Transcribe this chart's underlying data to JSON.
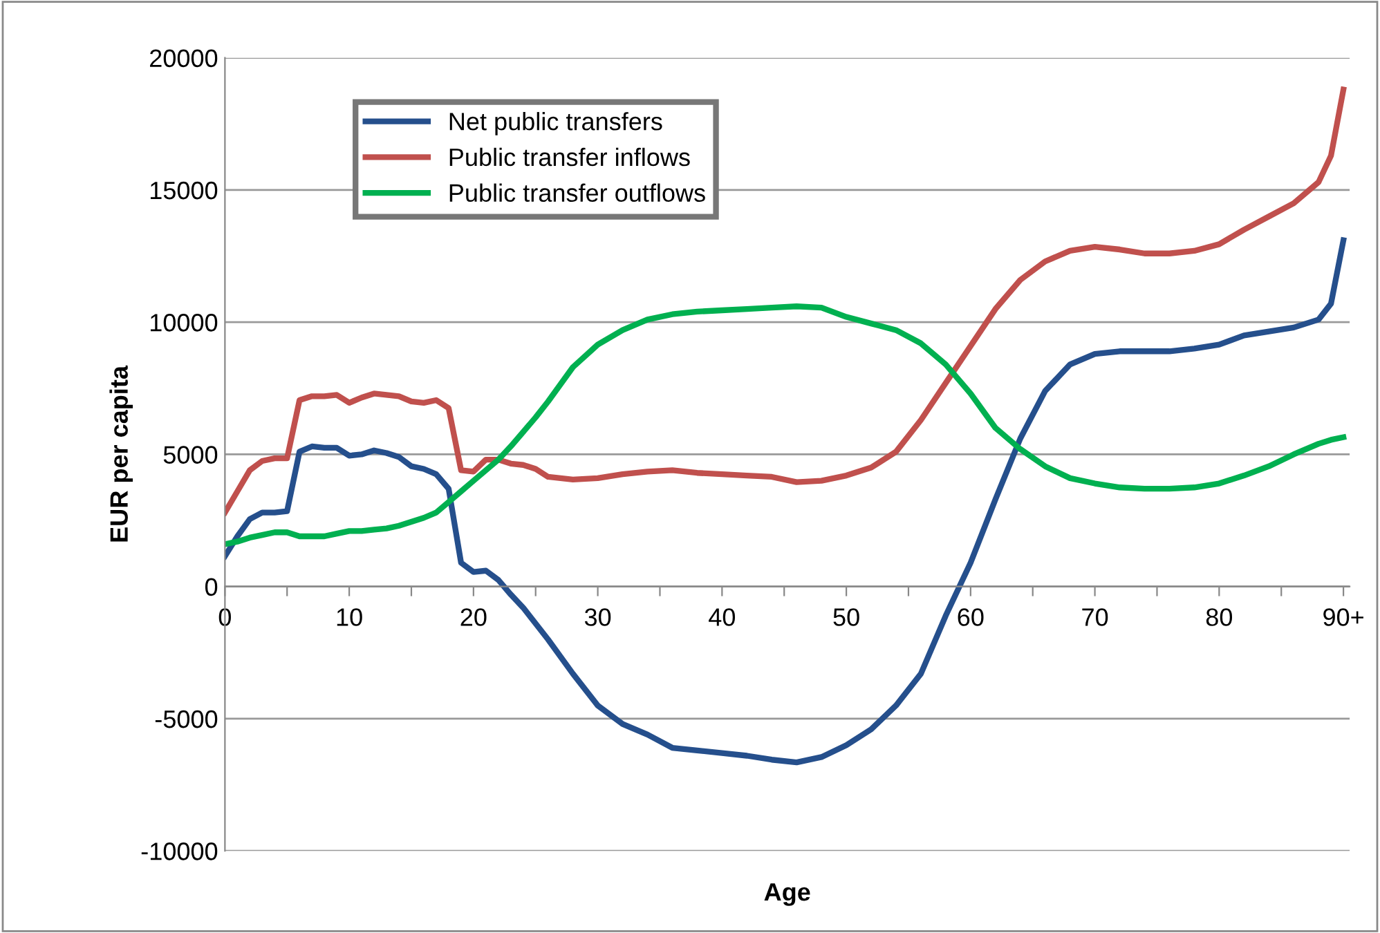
{
  "chart_data": {
    "type": "line",
    "xlabel": "Age",
    "ylabel": "EUR per capita",
    "x": [
      0,
      1,
      2,
      3,
      4,
      5,
      6,
      7,
      8,
      9,
      10,
      11,
      12,
      13,
      14,
      15,
      16,
      17,
      18,
      19,
      20,
      21,
      22,
      23,
      24,
      25,
      26,
      28,
      30,
      32,
      34,
      36,
      38,
      40,
      42,
      44,
      46,
      48,
      50,
      52,
      54,
      56,
      58,
      60,
      62,
      64,
      66,
      68,
      70,
      72,
      74,
      76,
      78,
      80,
      82,
      84,
      86,
      88,
      89,
      90
    ],
    "series": [
      {
        "name": "Net public transfers",
        "color": "#254f8c",
        "values": [
          1150,
          1900,
          2550,
          2800,
          2800,
          2850,
          5100,
          5300,
          5250,
          5250,
          4950,
          5000,
          5150,
          5050,
          4900,
          4550,
          4450,
          4250,
          3700,
          900,
          550,
          600,
          250,
          -300,
          -800,
          -1400,
          -2000,
          -3300,
          -4500,
          -5200,
          -5600,
          -6100,
          -6200,
          -6300,
          -6400,
          -6550,
          -6650,
          -6450,
          -6000,
          -5400,
          -4500,
          -3300,
          -1100,
          900,
          3300,
          5600,
          7400,
          8400,
          8800,
          8900,
          8900,
          8900,
          9000,
          9150,
          9500,
          9650,
          9800,
          10100,
          10700,
          13100
        ]
      },
      {
        "name": "Public transfer inflows",
        "color": "#c0504d",
        "values": [
          2800,
          3600,
          4400,
          4750,
          4850,
          4850,
          7050,
          7200,
          7200,
          7250,
          6950,
          7150,
          7300,
          7250,
          7200,
          7000,
          6950,
          7050,
          6750,
          4400,
          4350,
          4800,
          4800,
          4650,
          4600,
          4450,
          4150,
          4050,
          4100,
          4250,
          4350,
          4400,
          4300,
          4250,
          4200,
          4150,
          3950,
          4000,
          4200,
          4500,
          5100,
          6300,
          7700,
          9100,
          10500,
          11600,
          12300,
          12700,
          12850,
          12750,
          12600,
          12600,
          12700,
          12950,
          13500,
          14000,
          14500,
          15300,
          16300,
          18800
        ]
      },
      {
        "name": "Public transfer outflows",
        "color": "#00b050",
        "values": [
          1600,
          1700,
          1850,
          1950,
          2050,
          2050,
          1900,
          1900,
          1900,
          2000,
          2100,
          2100,
          2150,
          2200,
          2300,
          2450,
          2600,
          2800,
          3200,
          3600,
          4000,
          4400,
          4800,
          5300,
          5850,
          6400,
          7000,
          8300,
          9150,
          9700,
          10100,
          10300,
          10400,
          10450,
          10500,
          10550,
          10600,
          10550,
          10200,
          9950,
          9700,
          9200,
          8400,
          7300,
          6000,
          5200,
          4550,
          4100,
          3900,
          3750,
          3700,
          3700,
          3750,
          3900,
          4200,
          4550,
          5000,
          5400,
          5550,
          5650
        ]
      }
    ],
    "xlim": [
      0,
      90.5
    ],
    "xticks": [
      0,
      {
        "value": 5,
        "label": null
      },
      10,
      {
        "value": 15,
        "label": null
      },
      20,
      {
        "value": 25,
        "label": null
      },
      30,
      {
        "value": 35,
        "label": null
      },
      40,
      {
        "value": 45,
        "label": null
      },
      50,
      {
        "value": 55,
        "label": null
      },
      60,
      {
        "value": 65,
        "label": null
      },
      70,
      {
        "value": 75,
        "label": null
      },
      80,
      {
        "value": 85,
        "label": null
      },
      {
        "value": 90,
        "label": "90+"
      }
    ],
    "ylim": [
      -10000,
      20000
    ],
    "yticks": [
      -10000,
      -5000,
      0,
      5000,
      10000,
      15000,
      20000
    ],
    "grid": "y",
    "legend": "top left",
    "marker": "none",
    "line_style": "solid"
  }
}
